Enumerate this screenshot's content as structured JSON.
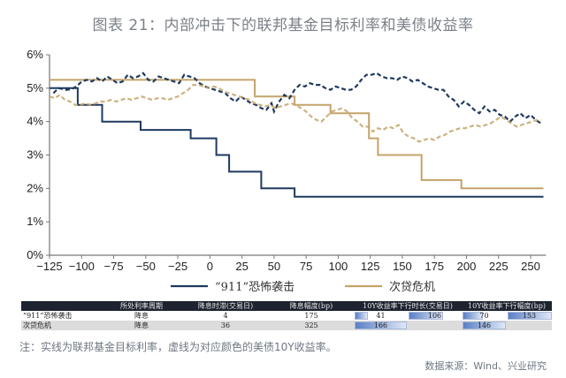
{
  "header": {
    "title": "图表 21：内部冲击下的联邦基金目标利率和美债收益率"
  },
  "chart_data": {
    "type": "line",
    "title": "图表 21：内部冲击下的联邦基金目标利率和美债收益率",
    "xlabel": "",
    "ylabel": "",
    "xlim": [
      -125,
      262
    ],
    "ylim": [
      0,
      6
    ],
    "x_ticks": [
      -125,
      -100,
      -75,
      -50,
      -25,
      0,
      25,
      50,
      75,
      100,
      125,
      150,
      175,
      200,
      225,
      250
    ],
    "y_ticks": [
      0,
      1,
      2,
      3,
      4,
      5,
      6
    ],
    "y_tick_labels": [
      "0%",
      "1%",
      "2%",
      "3%",
      "4%",
      "5%",
      "6%"
    ],
    "grid": false,
    "legend_position": "bottom",
    "legend": [
      {
        "label": "“911”恐怖袭击",
        "color": "#1f3a5f"
      },
      {
        "label": "次贷危机",
        "color": "#c4a46a"
      }
    ],
    "series": [
      {
        "name": "“911”恐怖袭击 联邦基金目标利率",
        "style": "solid",
        "color": "#1f3a5f",
        "points": [
          [
            -125,
            5.0
          ],
          [
            -103,
            5.0
          ],
          [
            -103,
            4.5
          ],
          [
            -84,
            4.5
          ],
          [
            -84,
            4.0
          ],
          [
            -54,
            4.0
          ],
          [
            -54,
            3.75
          ],
          [
            -15,
            3.75
          ],
          [
            -15,
            3.5
          ],
          [
            5,
            3.5
          ],
          [
            5,
            3.0
          ],
          [
            15,
            3.0
          ],
          [
            15,
            2.5
          ],
          [
            40,
            2.5
          ],
          [
            40,
            2.0
          ],
          [
            66,
            2.0
          ],
          [
            66,
            1.75
          ],
          [
            260,
            1.75
          ]
        ]
      },
      {
        "name": "次贷危机 联邦基金目标利率",
        "style": "solid",
        "color": "#c4a46a",
        "points": [
          [
            -125,
            5.25
          ],
          [
            35,
            5.25
          ],
          [
            35,
            4.75
          ],
          [
            66,
            4.75
          ],
          [
            66,
            4.5
          ],
          [
            94,
            4.5
          ],
          [
            94,
            4.25
          ],
          [
            124,
            4.25
          ],
          [
            124,
            3.5
          ],
          [
            131,
            3.5
          ],
          [
            131,
            3.0
          ],
          [
            165,
            3.0
          ],
          [
            165,
            2.25
          ],
          [
            196,
            2.25
          ],
          [
            196,
            2.0
          ],
          [
            260,
            2.0
          ]
        ]
      },
      {
        "name": "“911”恐怖袭击 美债10Y收益率",
        "style": "dashed",
        "color": "#1f3a5f",
        "points": [
          [
            -122,
            4.85
          ],
          [
            -118,
            5.0
          ],
          [
            -112,
            4.95
          ],
          [
            -108,
            4.97
          ],
          [
            -104,
            5.05
          ],
          [
            -100,
            5.2
          ],
          [
            -96,
            5.25
          ],
          [
            -92,
            5.2
          ],
          [
            -88,
            5.3
          ],
          [
            -84,
            5.2
          ],
          [
            -80,
            5.35
          ],
          [
            -76,
            5.25
          ],
          [
            -72,
            5.15
          ],
          [
            -68,
            5.2
          ],
          [
            -64,
            5.4
          ],
          [
            -60,
            5.3
          ],
          [
            -56,
            5.35
          ],
          [
            -52,
            5.45
          ],
          [
            -48,
            5.25
          ],
          [
            -44,
            5.2
          ],
          [
            -40,
            5.35
          ],
          [
            -36,
            5.3
          ],
          [
            -32,
            5.25
          ],
          [
            -28,
            5.2
          ],
          [
            -24,
            5.15
          ],
          [
            -20,
            5.4
          ],
          [
            -16,
            5.35
          ],
          [
            -12,
            5.3
          ],
          [
            -8,
            5.15
          ],
          [
            -4,
            5.05
          ],
          [
            0,
            5.0
          ],
          [
            4,
            4.95
          ],
          [
            8,
            4.9
          ],
          [
            12,
            4.85
          ],
          [
            16,
            4.7
          ],
          [
            20,
            4.6
          ],
          [
            24,
            4.75
          ],
          [
            28,
            4.65
          ],
          [
            32,
            4.55
          ],
          [
            36,
            4.5
          ],
          [
            40,
            4.4
          ],
          [
            44,
            4.35
          ],
          [
            48,
            4.55
          ],
          [
            50,
            4.3
          ],
          [
            54,
            4.6
          ],
          [
            58,
            4.8
          ],
          [
            62,
            4.7
          ],
          [
            66,
            4.95
          ],
          [
            70,
            5.1
          ],
          [
            74,
            5.05
          ],
          [
            78,
            5.15
          ],
          [
            82,
            5.1
          ],
          [
            86,
            5.1
          ],
          [
            90,
            5.0
          ],
          [
            94,
            4.95
          ],
          [
            98,
            5.05
          ],
          [
            102,
            5.0
          ],
          [
            106,
            4.95
          ],
          [
            110,
            4.95
          ],
          [
            114,
            5.05
          ],
          [
            118,
            5.25
          ],
          [
            122,
            5.4
          ],
          [
            126,
            5.4
          ],
          [
            130,
            5.45
          ],
          [
            134,
            5.35
          ],
          [
            138,
            5.3
          ],
          [
            142,
            5.3
          ],
          [
            146,
            5.25
          ],
          [
            150,
            5.35
          ],
          [
            154,
            5.3
          ],
          [
            158,
            5.2
          ],
          [
            162,
            5.25
          ],
          [
            166,
            5.15
          ],
          [
            170,
            5.05
          ],
          [
            174,
            5.0
          ],
          [
            178,
            4.95
          ],
          [
            182,
            4.95
          ],
          [
            186,
            4.75
          ],
          [
            190,
            4.65
          ],
          [
            194,
            4.45
          ],
          [
            198,
            4.6
          ],
          [
            202,
            4.5
          ],
          [
            206,
            4.35
          ],
          [
            210,
            4.25
          ],
          [
            214,
            4.45
          ],
          [
            218,
            4.3
          ],
          [
            222,
            4.35
          ],
          [
            226,
            4.2
          ],
          [
            230,
            4.15
          ],
          [
            234,
            4.0
          ],
          [
            238,
            4.15
          ],
          [
            242,
            4.25
          ],
          [
            246,
            4.1
          ],
          [
            250,
            4.2
          ],
          [
            254,
            4.05
          ],
          [
            258,
            3.95
          ]
        ]
      },
      {
        "name": "次贷危机 美债10Y收益率",
        "style": "dashed",
        "color": "#c4a46a",
        "points": [
          [
            -125,
            4.75
          ],
          [
            -121,
            4.7
          ],
          [
            -117,
            4.8
          ],
          [
            -113,
            4.65
          ],
          [
            -109,
            4.6
          ],
          [
            -105,
            4.5
          ],
          [
            -101,
            4.5
          ],
          [
            -97,
            4.55
          ],
          [
            -93,
            4.5
          ],
          [
            -89,
            4.55
          ],
          [
            -85,
            4.6
          ],
          [
            -81,
            4.6
          ],
          [
            -77,
            4.65
          ],
          [
            -73,
            4.6
          ],
          [
            -69,
            4.65
          ],
          [
            -65,
            4.7
          ],
          [
            -61,
            4.65
          ],
          [
            -57,
            4.7
          ],
          [
            -53,
            4.75
          ],
          [
            -49,
            4.7
          ],
          [
            -45,
            4.65
          ],
          [
            -41,
            4.7
          ],
          [
            -37,
            4.7
          ],
          [
            -33,
            4.65
          ],
          [
            -29,
            4.7
          ],
          [
            -25,
            4.75
          ],
          [
            -21,
            4.85
          ],
          [
            -17,
            4.95
          ],
          [
            -13,
            5.1
          ],
          [
            -9,
            5.1
          ],
          [
            -5,
            5.05
          ],
          [
            -1,
            5.0
          ],
          [
            3,
            5.05
          ],
          [
            7,
            5.0
          ],
          [
            11,
            4.9
          ],
          [
            15,
            4.85
          ],
          [
            19,
            4.8
          ],
          [
            23,
            4.75
          ],
          [
            27,
            4.7
          ],
          [
            31,
            4.65
          ],
          [
            35,
            4.55
          ],
          [
            39,
            4.5
          ],
          [
            43,
            4.45
          ],
          [
            47,
            4.5
          ],
          [
            51,
            4.4
          ],
          [
            55,
            4.45
          ],
          [
            59,
            4.5
          ],
          [
            63,
            4.55
          ],
          [
            67,
            4.5
          ],
          [
            71,
            4.4
          ],
          [
            75,
            4.3
          ],
          [
            79,
            4.15
          ],
          [
            83,
            4.05
          ],
          [
            87,
            4.0
          ],
          [
            91,
            4.15
          ],
          [
            95,
            4.3
          ],
          [
            99,
            4.35
          ],
          [
            103,
            4.4
          ],
          [
            107,
            4.3
          ],
          [
            111,
            4.1
          ],
          [
            115,
            4.0
          ],
          [
            119,
            3.85
          ],
          [
            123,
            3.85
          ],
          [
            127,
            3.7
          ],
          [
            131,
            3.8
          ],
          [
            135,
            3.75
          ],
          [
            139,
            3.85
          ],
          [
            143,
            3.8
          ],
          [
            147,
            3.9
          ],
          [
            151,
            3.65
          ],
          [
            155,
            3.55
          ],
          [
            159,
            3.5
          ],
          [
            163,
            3.4
          ],
          [
            167,
            3.45
          ],
          [
            171,
            3.5
          ],
          [
            175,
            3.45
          ],
          [
            179,
            3.55
          ],
          [
            183,
            3.6
          ],
          [
            187,
            3.7
          ],
          [
            191,
            3.75
          ],
          [
            195,
            3.8
          ],
          [
            199,
            3.8
          ],
          [
            203,
            3.85
          ],
          [
            207,
            3.9
          ],
          [
            211,
            3.85
          ],
          [
            215,
            3.9
          ],
          [
            219,
            3.95
          ],
          [
            223,
            4.05
          ],
          [
            227,
            4.15
          ],
          [
            231,
            4.05
          ],
          [
            235,
            3.95
          ],
          [
            239,
            3.85
          ],
          [
            243,
            3.9
          ],
          [
            247,
            3.95
          ],
          [
            251,
            4.0
          ],
          [
            255,
            4.05
          ],
          [
            258,
            4.05
          ]
        ]
      }
    ]
  },
  "table": {
    "headers": [
      "",
      "所处利率周期",
      "降息时滞(交易日)",
      "降息幅度(bp)",
      "10Y收益率下行时长(交易日)",
      "10Y收益率下行幅度(bp)"
    ],
    "rows": [
      {
        "event": "“911”恐怖袭击",
        "cycle": "降息",
        "lag_days": "4",
        "cut_bp": "175",
        "yield_down_days": [
          "41",
          "106"
        ],
        "yield_down_bp": [
          "70",
          "153"
        ]
      },
      {
        "event": "次贷危机",
        "cycle": "降息",
        "lag_days": "36",
        "cut_bp": "325",
        "yield_down_days": [
          "166"
        ],
        "yield_down_bp": [
          "146"
        ]
      }
    ]
  },
  "footer": {
    "note": "注：实线为联邦基金目标利率，虚线为对应颜色的美债10Y收益率。",
    "source": "数据来源：Wind、兴业研究"
  },
  "colors": {
    "navy": "#1f3a5f",
    "gold": "#c4a46a",
    "table_header_bg": "#1d2430",
    "row_alt_bg": "#dcdcdc"
  }
}
